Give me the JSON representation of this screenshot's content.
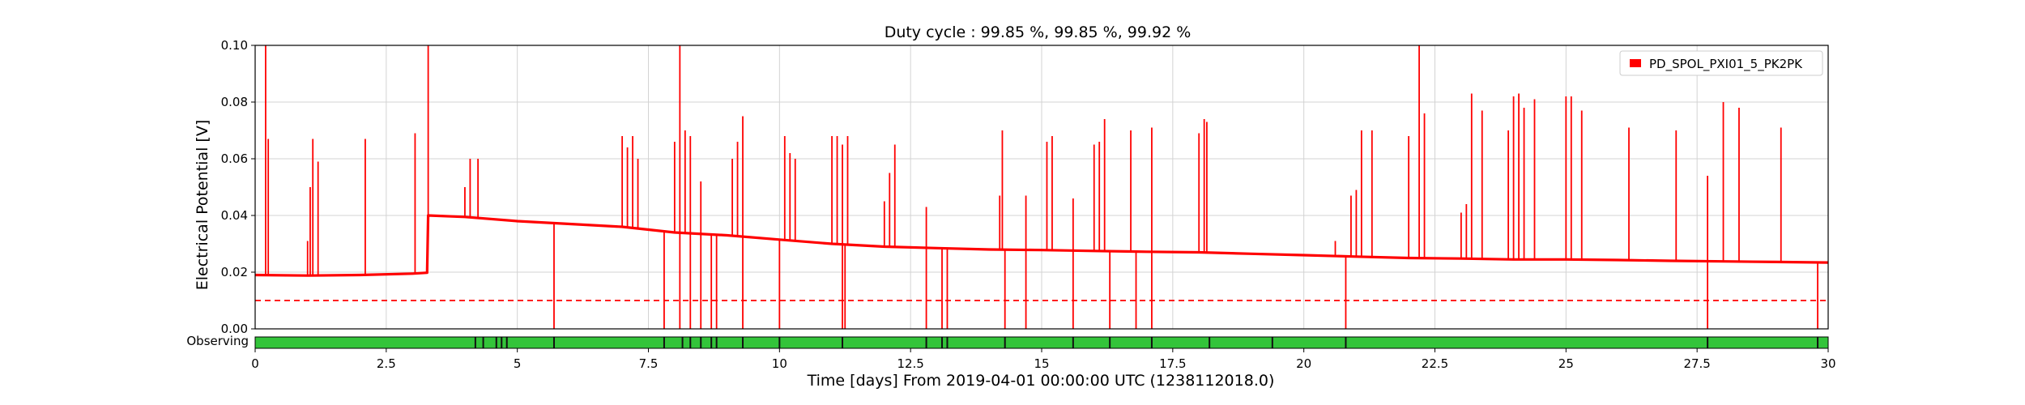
{
  "chart_data": {
    "type": "line",
    "title": "Duty cycle : 99.85 %, 99.85 %, 99.92 %",
    "xlabel": "Time [days] From 2019-04-01 00:00:00 UTC (1238112018.0)",
    "ylabel": "Electrical Potential [V]",
    "xlim": [
      0,
      30
    ],
    "ylim": [
      0,
      0.1
    ],
    "x_ticks": [
      0,
      2.5,
      5,
      7.5,
      10,
      12.5,
      15,
      17.5,
      20,
      22.5,
      25,
      27.5,
      30
    ],
    "x_tick_labels": [
      "0",
      "2.5",
      "5",
      "7.5",
      "10",
      "12.5",
      "15",
      "17.5",
      "20",
      "22.5",
      "25",
      "27.5",
      "30"
    ],
    "y_ticks": [
      0,
      0.02,
      0.04,
      0.06,
      0.08,
      0.1
    ],
    "y_tick_labels": [
      "0.00",
      "0.02",
      "0.04",
      "0.06",
      "0.08",
      "0.10"
    ],
    "grid": true,
    "legend": {
      "position": "top-right"
    },
    "colors": {
      "series": "#ff0000",
      "threshold": "#ff0000",
      "observing": "#33c43a",
      "gap": "#111111"
    },
    "series": [
      {
        "name": "PD_SPOL_PXI01_5_PK2PK",
        "baseline": [
          [
            0,
            0.019
          ],
          [
            1,
            0.0188
          ],
          [
            2,
            0.019
          ],
          [
            3,
            0.0195
          ],
          [
            3.28,
            0.0198
          ],
          [
            3.3,
            0.04
          ],
          [
            4,
            0.0395
          ],
          [
            5,
            0.038
          ],
          [
            6,
            0.037
          ],
          [
            7,
            0.036
          ],
          [
            8,
            0.034
          ],
          [
            9,
            0.033
          ],
          [
            10,
            0.0315
          ],
          [
            11,
            0.03
          ],
          [
            12,
            0.029
          ],
          [
            13,
            0.0285
          ],
          [
            14,
            0.028
          ],
          [
            15,
            0.0278
          ],
          [
            16,
            0.0275
          ],
          [
            17,
            0.0272
          ],
          [
            18,
            0.027
          ],
          [
            19,
            0.0265
          ],
          [
            20,
            0.026
          ],
          [
            21,
            0.0255
          ],
          [
            22,
            0.025
          ],
          [
            23,
            0.0248
          ],
          [
            24,
            0.0245
          ],
          [
            25,
            0.0245
          ],
          [
            26,
            0.0243
          ],
          [
            27,
            0.024
          ],
          [
            28,
            0.0238
          ],
          [
            29,
            0.0236
          ],
          [
            30,
            0.0234
          ]
        ],
        "spikes_up": [
          [
            0.2,
            0.1
          ],
          [
            0.25,
            0.067
          ],
          [
            1.0,
            0.031
          ],
          [
            1.05,
            0.05
          ],
          [
            1.1,
            0.067
          ],
          [
            1.2,
            0.059
          ],
          [
            2.1,
            0.067
          ],
          [
            3.05,
            0.069
          ],
          [
            3.3,
            0.1
          ],
          [
            4.0,
            0.05
          ],
          [
            4.1,
            0.06
          ],
          [
            4.25,
            0.06
          ],
          [
            7.0,
            0.068
          ],
          [
            7.1,
            0.064
          ],
          [
            7.2,
            0.068
          ],
          [
            7.3,
            0.06
          ],
          [
            8.0,
            0.066
          ],
          [
            8.1,
            0.1
          ],
          [
            8.2,
            0.07
          ],
          [
            8.3,
            0.068
          ],
          [
            8.5,
            0.052
          ],
          [
            9.1,
            0.06
          ],
          [
            9.2,
            0.066
          ],
          [
            9.3,
            0.075
          ],
          [
            10.1,
            0.068
          ],
          [
            10.2,
            0.062
          ],
          [
            10.3,
            0.06
          ],
          [
            11.0,
            0.068
          ],
          [
            11.1,
            0.068
          ],
          [
            11.2,
            0.065
          ],
          [
            11.3,
            0.068
          ],
          [
            12.0,
            0.045
          ],
          [
            12.1,
            0.055
          ],
          [
            12.2,
            0.065
          ],
          [
            12.8,
            0.043
          ],
          [
            14.2,
            0.047
          ],
          [
            14.25,
            0.07
          ],
          [
            14.7,
            0.047
          ],
          [
            15.1,
            0.066
          ],
          [
            15.2,
            0.068
          ],
          [
            15.6,
            0.046
          ],
          [
            16.0,
            0.065
          ],
          [
            16.1,
            0.066
          ],
          [
            16.2,
            0.074
          ],
          [
            16.7,
            0.07
          ],
          [
            17.1,
            0.071
          ],
          [
            18.0,
            0.069
          ],
          [
            18.1,
            0.074
          ],
          [
            18.15,
            0.073
          ],
          [
            20.6,
            0.031
          ],
          [
            20.9,
            0.047
          ],
          [
            21.0,
            0.049
          ],
          [
            21.1,
            0.07
          ],
          [
            21.3,
            0.07
          ],
          [
            22.0,
            0.068
          ],
          [
            22.2,
            0.1
          ],
          [
            22.3,
            0.076
          ],
          [
            23.0,
            0.041
          ],
          [
            23.1,
            0.044
          ],
          [
            23.2,
            0.083
          ],
          [
            23.4,
            0.077
          ],
          [
            23.9,
            0.07
          ],
          [
            24.0,
            0.082
          ],
          [
            24.1,
            0.083
          ],
          [
            24.2,
            0.078
          ],
          [
            24.4,
            0.081
          ],
          [
            25.0,
            0.082
          ],
          [
            25.1,
            0.082
          ],
          [
            25.3,
            0.077
          ],
          [
            26.2,
            0.071
          ],
          [
            27.1,
            0.07
          ],
          [
            27.7,
            0.054
          ],
          [
            28.0,
            0.08
          ],
          [
            28.3,
            0.078
          ],
          [
            29.1,
            0.071
          ]
        ],
        "dropouts": [
          5.7,
          7.8,
          8.1,
          8.3,
          8.5,
          8.7,
          8.8,
          9.3,
          10.0,
          11.2,
          11.25,
          12.8,
          13.1,
          13.2,
          14.3,
          14.7,
          15.6,
          16.3,
          16.8,
          17.1,
          20.8,
          27.7,
          29.8
        ]
      }
    ],
    "threshold": {
      "value": 0.01,
      "style": "dashed"
    },
    "observing_bar": {
      "label": "Observing",
      "gaps": [
        4.2,
        4.35,
        4.6,
        4.7,
        4.8,
        5.7,
        7.8,
        8.15,
        8.3,
        8.5,
        8.7,
        8.8,
        9.3,
        10.0,
        11.2,
        12.8,
        13.1,
        13.2,
        14.3,
        15.6,
        16.3,
        17.1,
        18.2,
        19.4,
        20.8,
        27.7,
        29.8
      ]
    }
  }
}
